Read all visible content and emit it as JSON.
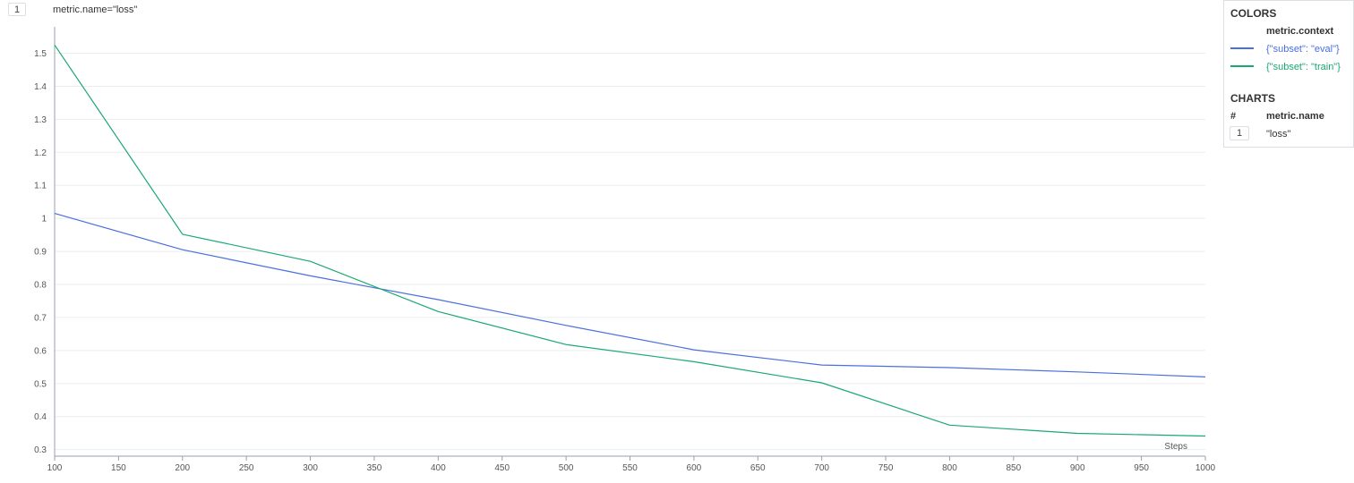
{
  "chart_header": {
    "index": "1",
    "title": "metric.name=\"loss\""
  },
  "legend": {
    "colors_title": "COLORS",
    "colors_column": "metric.context",
    "entries": [
      {
        "label": "{\"subset\": \"eval\"}",
        "color": "#4a6fde"
      },
      {
        "label": "{\"subset\": \"train\"}",
        "color": "#1aa872"
      }
    ],
    "charts_title": "CHARTS",
    "charts_col_index": "#",
    "charts_col_name": "metric.name",
    "charts_rows": [
      {
        "index": "1",
        "name": "\"loss\""
      }
    ]
  },
  "chart_data": {
    "type": "line",
    "xlabel": "Steps",
    "ylabel": "",
    "xlim": [
      100,
      1000
    ],
    "ylim": [
      0.28,
      1.58
    ],
    "grid": true,
    "x_ticks": [
      "100",
      "150",
      "200",
      "250",
      "300",
      "350",
      "400",
      "450",
      "500",
      "550",
      "600",
      "650",
      "700",
      "750",
      "800",
      "850",
      "900",
      "950",
      "1000"
    ],
    "y_ticks": [
      "0.3",
      "0.4",
      "0.5",
      "0.6",
      "0.7",
      "0.8",
      "0.9",
      "1",
      "1.1",
      "1.2",
      "1.3",
      "1.4",
      "1.5"
    ],
    "x": [
      100,
      200,
      300,
      400,
      500,
      600,
      700,
      800,
      900,
      1000
    ],
    "series": [
      {
        "name": "{\"subset\": \"eval\"}",
        "color": "#4a6fde",
        "values": [
          1.015,
          0.905,
          0.826,
          0.754,
          0.676,
          0.602,
          0.556,
          0.548,
          0.535,
          0.52
        ]
      },
      {
        "name": "{\"subset\": \"train\"}",
        "color": "#1aa872",
        "values": [
          1.525,
          0.952,
          0.87,
          0.718,
          0.618,
          0.566,
          0.502,
          0.374,
          0.349,
          0.341
        ]
      }
    ]
  }
}
